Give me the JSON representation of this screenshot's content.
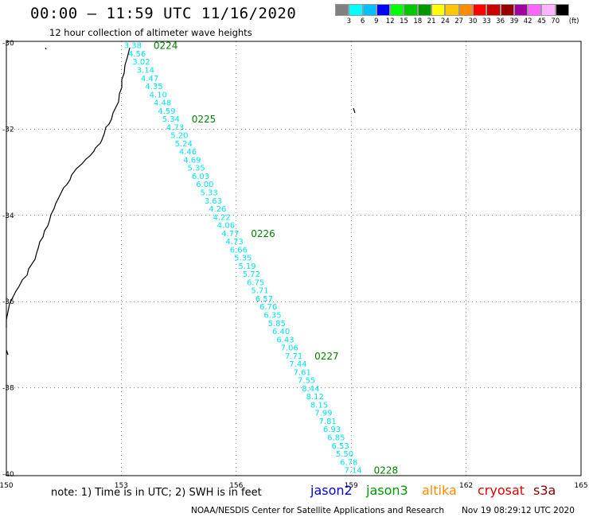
{
  "header": {
    "title": "00:00 – 11:59 UTC 11/16/2020",
    "subtitle": "12 hour collection of altimeter wave heights"
  },
  "legend": {
    "unit": "(ft)",
    "colors": [
      "#808080",
      "#00ffff",
      "#00bfff",
      "#0000ff",
      "#00ff00",
      "#00c800",
      "#009600",
      "#ffff00",
      "#ffc800",
      "#ff8c00",
      "#ff0000",
      "#c80000",
      "#960000",
      "#a000a0",
      "#ff64ff",
      "#ffb4ff",
      "#000000"
    ],
    "labels": [
      "3",
      "6",
      "9",
      "12",
      "15",
      "18",
      "21",
      "24",
      "27",
      "30",
      "33",
      "36",
      "39",
      "42",
      "45",
      "70"
    ]
  },
  "axes": {
    "lon_labels": [
      "150",
      "153",
      "156",
      "159",
      "162",
      "165"
    ],
    "lat_labels": [
      "-30",
      "-32",
      "-34",
      "-36",
      "-38",
      "-40"
    ]
  },
  "track": {
    "color": "#00e5ee",
    "label_color": "#008000",
    "lon_start": 153.3,
    "lat_start": -30.05,
    "lon_end": 159.05,
    "lat_end": -39.9,
    "values": [
      "3.38",
      "4.56",
      "3.02",
      "3.14",
      "4.47",
      "4.35",
      "4.10",
      "4.48",
      "4.59",
      "5.34",
      "4.73",
      "5.20",
      "5.24",
      "4.46",
      "4.69",
      "5.35",
      "6.03",
      "6.00",
      "5.33",
      "3.63",
      "4.26",
      "4.22",
      "4.06",
      "4.77",
      "4.73",
      "6.66",
      "5.35",
      "5.19",
      "5.72",
      "6.75",
      "5.71",
      "6.57",
      "6.76",
      "6.35",
      "5.85",
      "6.40",
      "6.43",
      "7.06",
      "7.71",
      "7.44",
      "7.61",
      "7.55",
      "8.44",
      "8.12",
      "8.15",
      "7.99",
      "7.81",
      "6.93",
      "6.85",
      "6.53",
      "5.50",
      "6.78",
      "7.14"
    ],
    "time_labels": [
      {
        "text": "0224",
        "index": 0
      },
      {
        "text": "0225",
        "index": 9
      },
      {
        "text": "0226",
        "index": 23
      },
      {
        "text": "0227",
        "index": 38
      },
      {
        "text": "0228",
        "index": 52
      }
    ]
  },
  "footer": {
    "note": "note:  1) Time is in UTC;  2) SWH is in feet",
    "satellites": [
      {
        "name": "jason2",
        "color": "#0000dd"
      },
      {
        "name": "jason3",
        "color": "#009900"
      },
      {
        "name": "altika",
        "color": "#ff8c00"
      },
      {
        "name": "cryosat",
        "color": "#e00000"
      },
      {
        "name": "s3a",
        "color": "#8b0000"
      }
    ],
    "credit": "NOAA/NESDIS Center for Satellite Applications and Research",
    "timestamp": "Nov 19 08:29:12 UTC 2020"
  }
}
